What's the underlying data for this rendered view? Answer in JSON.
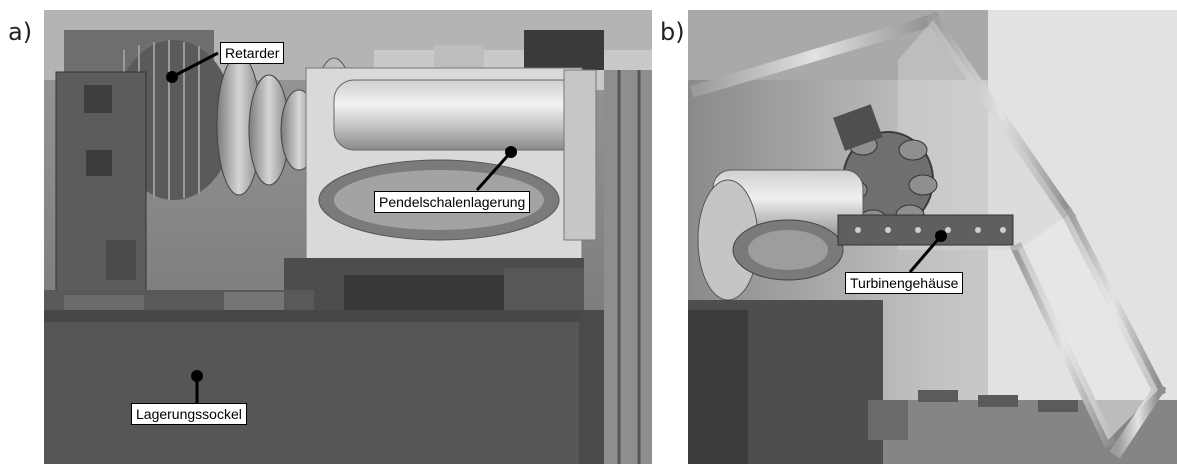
{
  "panel_a": {
    "letter": "a)",
    "callouts": {
      "retarder": "Retarder",
      "pendelschalenlagerung": "Pendelschalenlagerung",
      "lagerungssockel": "Lagerungssockel"
    }
  },
  "panel_b": {
    "letter": "b)",
    "callouts": {
      "turbinengehaeuse": "Turbinengehäuse"
    }
  }
}
